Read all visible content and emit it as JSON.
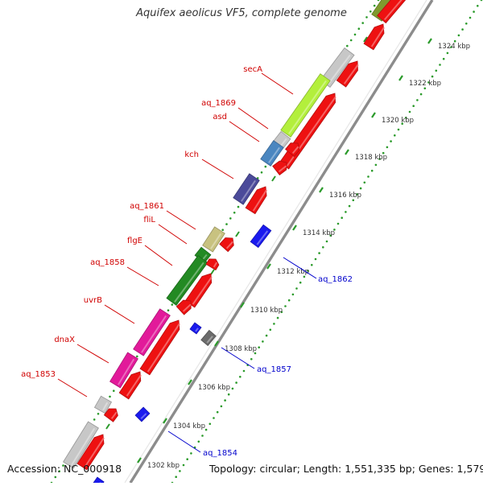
{
  "title": "Aquifex aeolicus VF5, complete genome",
  "accession": "Accession: NC_000918",
  "topology": "Topology: circular; Length: 1,551,335 bp; Genes: 1,579",
  "colors": {
    "backbone": "#8c8c8c",
    "tick_dots": "#2a9a2a",
    "label_forward": "#d00000",
    "label_reverse": "#0000cc",
    "kbp_text": "#333333"
  },
  "kbp_ticks": [
    "1302 kbp",
    "1304 kbp",
    "1306 kbp",
    "1308 kbp",
    "1310 kbp",
    "1312 kbp",
    "1314 kbp",
    "1316 kbp",
    "1318 kbp",
    "1320 kbp",
    "1322 kbp",
    "1324 kbp"
  ],
  "forward_gene_labels": [
    "secA",
    "aq_1869",
    "asd",
    "kch",
    "aq_1861",
    "fliL",
    "flgE",
    "aq_1858",
    "uvrB",
    "dnaX",
    "aq_1853"
  ],
  "reverse_gene_labels": [
    "aq_1862",
    "aq_1857",
    "aq_1854"
  ]
}
